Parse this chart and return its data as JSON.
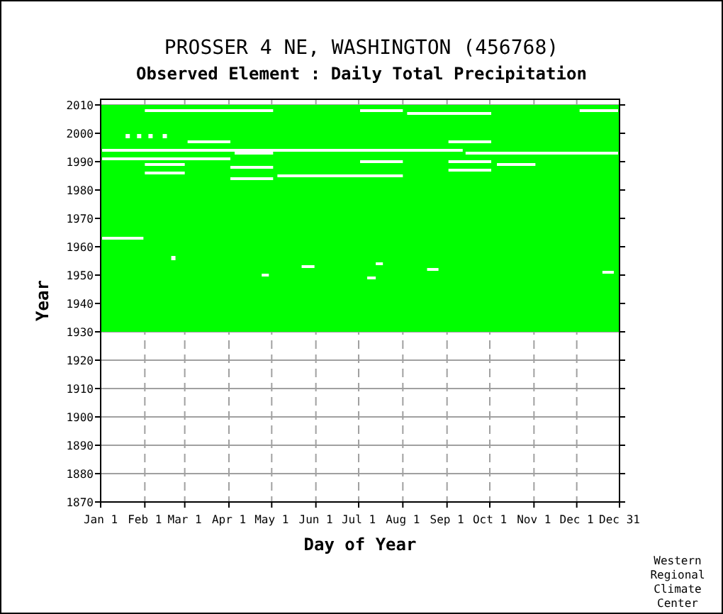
{
  "chart_data": {
    "type": "line",
    "title": "PROSSER 4 NE, WASHINGTON   (456768)",
    "subtitle": "Observed Element : Daily Total Precipitation",
    "xlabel": "Day of Year",
    "ylabel": "Year",
    "annotations": [
      "Western Regional Climate Center"
    ],
    "xlim": [
      "--01-01",
      "--12-31"
    ],
    "xticks": [
      {
        "value": "--01-01",
        "label": "Jan 1"
      },
      {
        "value": "--02-01",
        "label": "Feb 1"
      },
      {
        "value": "--03-01",
        "label": "Mar 1"
      },
      {
        "value": "--04-01",
        "label": "Apr 1"
      },
      {
        "value": "--05-01",
        "label": "May 1"
      },
      {
        "value": "--06-01",
        "label": "Jun 1"
      },
      {
        "value": "--07-01",
        "label": "Jul 1"
      },
      {
        "value": "--08-01",
        "label": "Aug 1"
      },
      {
        "value": "--09-01",
        "label": "Sep 1"
      },
      {
        "value": "--10-01",
        "label": "Oct 1"
      },
      {
        "value": "--11-01",
        "label": "Nov 1"
      },
      {
        "value": "--12-01",
        "label": "Dec 1"
      },
      {
        "value": "--12-31",
        "label": "Dec 31"
      }
    ],
    "ylim": [
      1870,
      2012
    ],
    "yticks": [
      1870,
      1880,
      1890,
      1900,
      1910,
      1920,
      1930,
      1940,
      1950,
      1960,
      1970,
      1980,
      1990,
      2000,
      2010
    ],
    "grid": true,
    "bands": [
      {
        "axis": "y",
        "from": 1930,
        "to": 2010,
        "color": "#00ff00"
      }
    ],
    "series": [
      {
        "color": "#ffffff",
        "x": [
          "--02-01",
          "--05-02"
        ],
        "values": [
          2008,
          2008
        ]
      },
      {
        "color": "#ffffff",
        "x": [
          "--07-02",
          "--08-01"
        ],
        "values": [
          2008,
          2008
        ]
      },
      {
        "color": "#ffffff",
        "x": [
          "--08-04",
          "--10-02"
        ],
        "values": [
          2007,
          2007
        ]
      },
      {
        "color": "#ffffff",
        "x": [
          "--12-03",
          "--12-30"
        ],
        "values": [
          2008,
          2008
        ]
      },
      {
        "type": "scatter",
        "color": "#ffffff",
        "marker": "square",
        "x": [
          "--01-20",
          "--01-28",
          "--02-05",
          "--02-15",
          "--02-21"
        ],
        "values": [
          1999,
          1999,
          1999,
          1999,
          1956
        ]
      },
      {
        "color": "#ffffff",
        "x": [
          "--03-03",
          "--04-02"
        ],
        "values": [
          1997,
          1997
        ]
      },
      {
        "color": "#ffffff",
        "x": [
          "--09-02",
          "--10-02"
        ],
        "values": [
          1997,
          1997
        ]
      },
      {
        "color": "#ffffff",
        "x": [
          "--01-02",
          "--09-12"
        ],
        "values": [
          1994,
          1994
        ]
      },
      {
        "color": "#ffffff",
        "x": [
          "--09-14",
          "--12-30"
        ],
        "values": [
          1993,
          1993
        ]
      },
      {
        "color": "#ffffff",
        "x": [
          "--01-02",
          "--04-02"
        ],
        "values": [
          1991,
          1991
        ]
      },
      {
        "color": "#ffffff",
        "x": [
          "--02-01",
          "--03-01"
        ],
        "values": [
          1989,
          1989
        ]
      },
      {
        "color": "#ffffff",
        "x": [
          "--04-05",
          "--05-02"
        ],
        "values": [
          1993,
          1993
        ]
      },
      {
        "color": "#ffffff",
        "x": [
          "--04-02",
          "--05-02"
        ],
        "values": [
          1988,
          1988
        ]
      },
      {
        "color": "#ffffff",
        "x": [
          "--09-02",
          "--10-02"
        ],
        "values": [
          1987,
          1987
        ]
      },
      {
        "color": "#ffffff",
        "x": [
          "--02-01",
          "--03-01"
        ],
        "values": [
          1986,
          1986
        ]
      },
      {
        "color": "#ffffff",
        "x": [
          "--05-05",
          "--08-01"
        ],
        "values": [
          1985,
          1985
        ]
      },
      {
        "color": "#ffffff",
        "x": [
          "--04-02",
          "--05-02"
        ],
        "values": [
          1984,
          1984
        ]
      },
      {
        "color": "#ffffff",
        "x": [
          "--07-02",
          "--08-01"
        ],
        "values": [
          1990,
          1990
        ]
      },
      {
        "color": "#ffffff",
        "x": [
          "--09-02",
          "--10-02"
        ],
        "values": [
          1990,
          1990
        ]
      },
      {
        "color": "#ffffff",
        "x": [
          "--10-06",
          "--11-02"
        ],
        "values": [
          1989,
          1989
        ]
      },
      {
        "color": "#ffffff",
        "x": [
          "--01-02",
          "--01-31"
        ],
        "values": [
          1963,
          1963
        ]
      },
      {
        "color": "#ffffff",
        "x": [
          "--05-22",
          "--05-31"
        ],
        "values": [
          1953,
          1953
        ]
      },
      {
        "color": "#ffffff",
        "x": [
          "--07-13",
          "--07-18"
        ],
        "values": [
          1954,
          1954
        ]
      },
      {
        "color": "#ffffff",
        "x": [
          "--08-18",
          "--08-26"
        ],
        "values": [
          1952,
          1952
        ]
      },
      {
        "color": "#ffffff",
        "x": [
          "--04-24",
          "--04-29"
        ],
        "values": [
          1950,
          1950
        ]
      },
      {
        "color": "#ffffff",
        "x": [
          "--07-07",
          "--07-13"
        ],
        "values": [
          1949,
          1949
        ]
      },
      {
        "color": "#ffffff",
        "x": [
          "--12-19",
          "--12-27"
        ],
        "values": [
          1951,
          1951
        ]
      }
    ]
  }
}
